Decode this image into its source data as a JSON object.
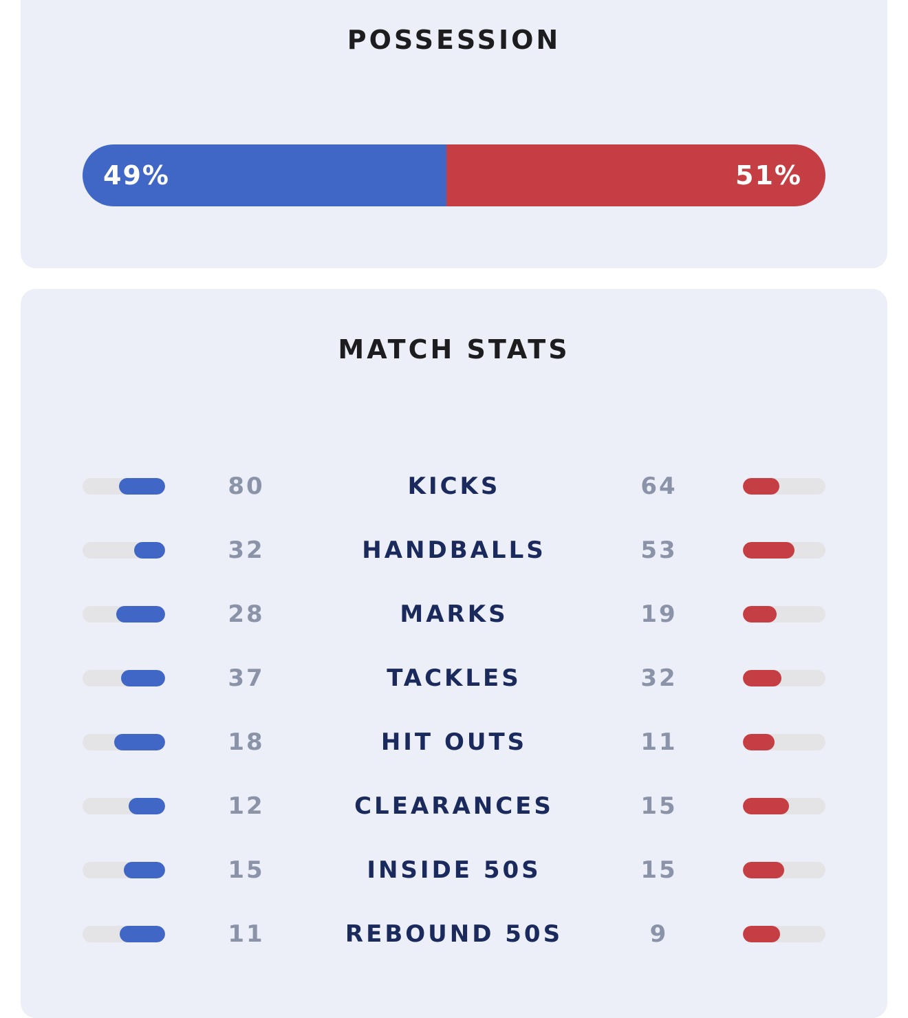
{
  "possession": {
    "title": "POSSESSION",
    "home_pct": 49,
    "away_pct": 51,
    "home_label": "49%",
    "away_label": "51%",
    "home_color": "#4067c6",
    "away_color": "#c53e43"
  },
  "match_stats": {
    "title": "MATCH STATS",
    "rows": [
      {
        "label": "KICKS",
        "home": "80",
        "away": "64"
      },
      {
        "label": "HANDBALLS",
        "home": "32",
        "away": "53"
      },
      {
        "label": "MARKS",
        "home": "28",
        "away": "19"
      },
      {
        "label": "TACKLES",
        "home": "37",
        "away": "32"
      },
      {
        "label": "HIT OUTS",
        "home": "18",
        "away": "11"
      },
      {
        "label": "CLEARANCES",
        "home": "12",
        "away": "15"
      },
      {
        "label": "INSIDE 50S",
        "home": "15",
        "away": "15"
      },
      {
        "label": "REBOUND 50S",
        "home": "11",
        "away": "9"
      }
    ]
  }
}
